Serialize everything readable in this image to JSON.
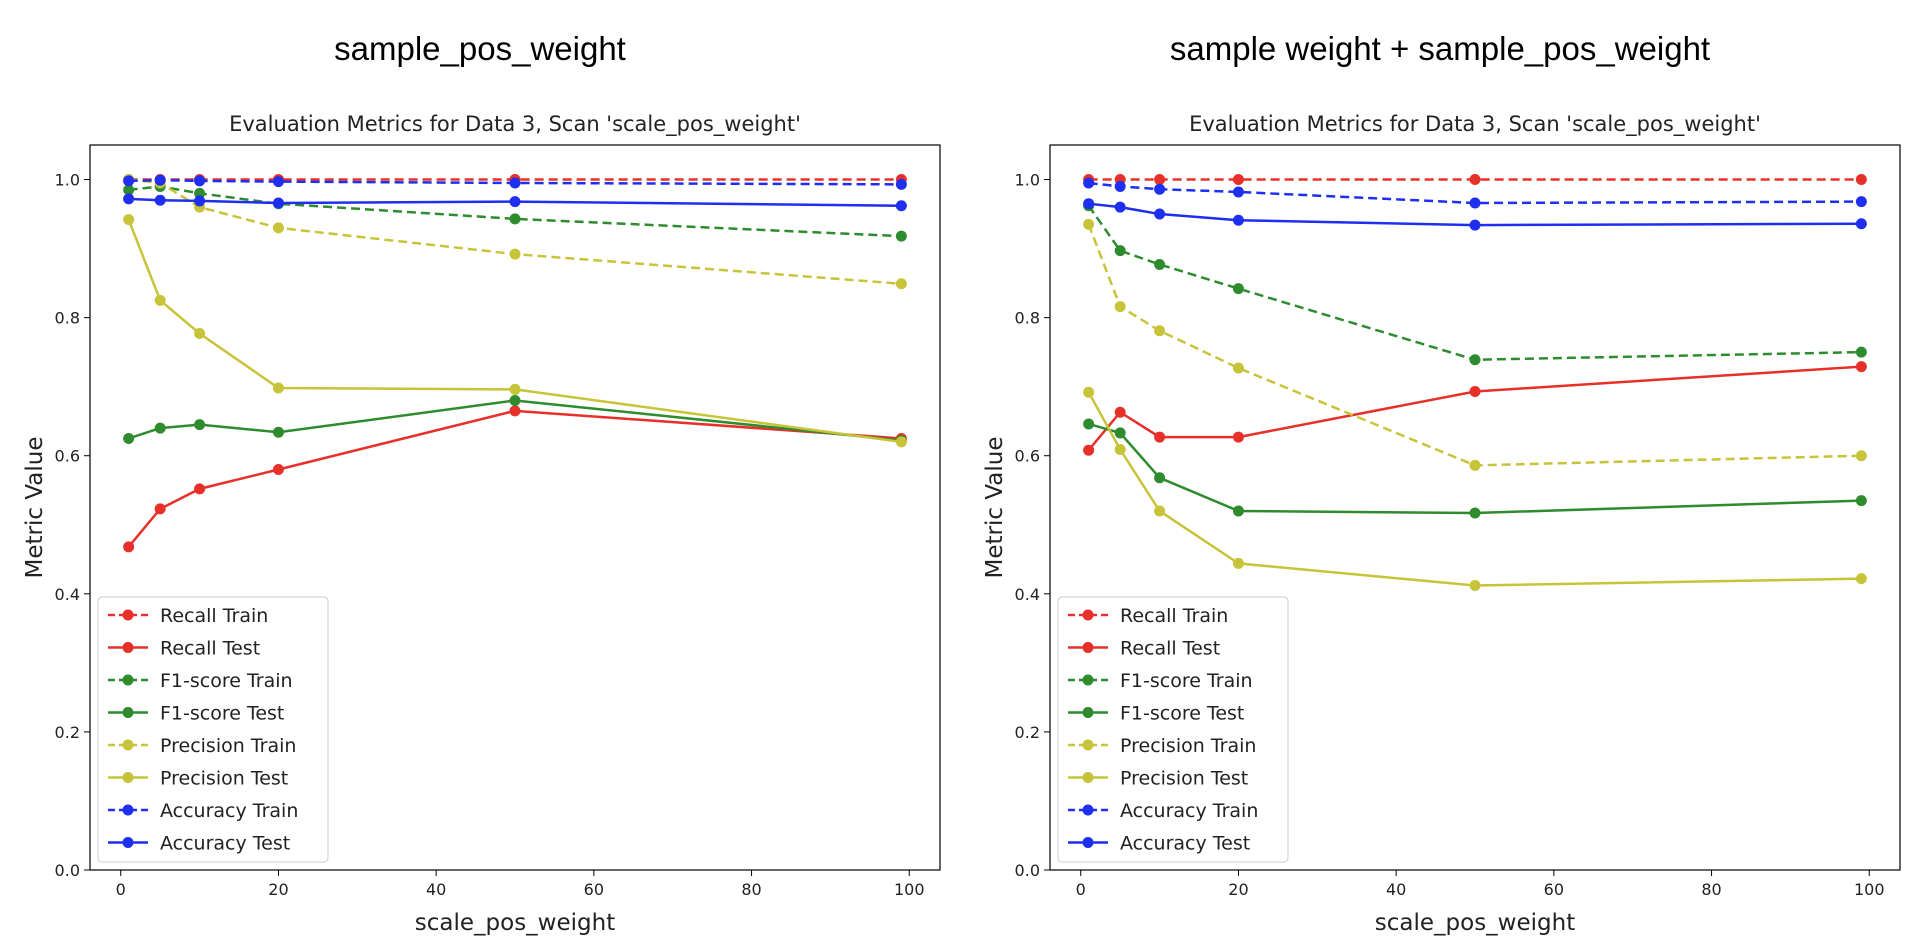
{
  "headings": [
    "sample_pos_weight",
    "sample weight + sample_pos_weight"
  ],
  "chart_data": [
    {
      "type": "line",
      "title": "Evaluation Metrics for Data 3, Scan 'scale_pos_weight'",
      "xlabel": "scale_pos_weight",
      "ylabel": "Metric Value",
      "x": [
        1,
        5,
        10,
        20,
        50,
        99
      ],
      "xlim": [
        -3.9,
        103.9
      ],
      "ylim": [
        0,
        1.05
      ],
      "xticks": [
        0,
        20,
        40,
        60,
        80,
        100
      ],
      "yticks": [
        0.0,
        0.2,
        0.4,
        0.6,
        0.8,
        1.0
      ],
      "grid": false,
      "legend_position": "lower-left",
      "series": [
        {
          "name": "Recall Train",
          "color": "#e8302a",
          "dashed": true,
          "values": [
            1.0,
            1.0,
            1.0,
            1.0,
            1.0,
            1.0
          ]
        },
        {
          "name": "Recall Test",
          "color": "#e8302a",
          "dashed": false,
          "values": [
            0.468,
            0.523,
            0.552,
            0.58,
            0.665,
            0.625
          ]
        },
        {
          "name": "F1-score Train",
          "color": "#2e8b2e",
          "dashed": true,
          "values": [
            0.985,
            0.99,
            0.98,
            0.965,
            0.943,
            0.918
          ]
        },
        {
          "name": "F1-score Test",
          "color": "#2e8b2e",
          "dashed": false,
          "values": [
            0.625,
            0.64,
            0.645,
            0.634,
            0.68,
            0.622
          ]
        },
        {
          "name": "Precision Train",
          "color": "#c8c43a",
          "dashed": true,
          "values": [
            1.0,
            0.995,
            0.96,
            0.93,
            0.892,
            0.849
          ]
        },
        {
          "name": "Precision Test",
          "color": "#c8c43a",
          "dashed": false,
          "values": [
            0.942,
            0.825,
            0.777,
            0.698,
            0.696,
            0.62
          ]
        },
        {
          "name": "Accuracy Train",
          "color": "#1f2ff0",
          "dashed": true,
          "values": [
            0.998,
            0.999,
            0.998,
            0.997,
            0.995,
            0.993
          ]
        },
        {
          "name": "Accuracy Test",
          "color": "#1f2ff0",
          "dashed": false,
          "values": [
            0.972,
            0.97,
            0.969,
            0.966,
            0.968,
            0.962
          ]
        }
      ]
    },
    {
      "type": "line",
      "title": "Evaluation Metrics for Data 3, Scan 'scale_pos_weight'",
      "xlabel": "scale_pos_weight",
      "ylabel": "Metric Value",
      "x": [
        1,
        5,
        10,
        20,
        50,
        99
      ],
      "xlim": [
        -3.9,
        103.9
      ],
      "ylim": [
        0,
        1.05
      ],
      "xticks": [
        0,
        20,
        40,
        60,
        80,
        100
      ],
      "yticks": [
        0.0,
        0.2,
        0.4,
        0.6,
        0.8,
        1.0
      ],
      "grid": false,
      "legend_position": "lower-left",
      "series": [
        {
          "name": "Recall Train",
          "color": "#e8302a",
          "dashed": true,
          "values": [
            1.0,
            1.0,
            1.0,
            1.0,
            1.0,
            1.0
          ]
        },
        {
          "name": "Recall Test",
          "color": "#e8302a",
          "dashed": false,
          "values": [
            0.608,
            0.663,
            0.627,
            0.627,
            0.693,
            0.729
          ]
        },
        {
          "name": "F1-score Train",
          "color": "#2e8b2e",
          "dashed": true,
          "values": [
            0.962,
            0.897,
            0.877,
            0.842,
            0.739,
            0.75
          ]
        },
        {
          "name": "F1-score Test",
          "color": "#2e8b2e",
          "dashed": false,
          "values": [
            0.646,
            0.633,
            0.568,
            0.52,
            0.517,
            0.535
          ]
        },
        {
          "name": "Precision Train",
          "color": "#c8c43a",
          "dashed": true,
          "values": [
            0.935,
            0.816,
            0.781,
            0.727,
            0.586,
            0.6
          ]
        },
        {
          "name": "Precision Test",
          "color": "#c8c43a",
          "dashed": false,
          "values": [
            0.692,
            0.609,
            0.52,
            0.444,
            0.412,
            0.422
          ]
        },
        {
          "name": "Accuracy Train",
          "color": "#1f2ff0",
          "dashed": true,
          "values": [
            0.995,
            0.99,
            0.986,
            0.982,
            0.966,
            0.968
          ]
        },
        {
          "name": "Accuracy Test",
          "color": "#1f2ff0",
          "dashed": false,
          "values": [
            0.965,
            0.96,
            0.95,
            0.941,
            0.934,
            0.936
          ]
        }
      ]
    }
  ]
}
